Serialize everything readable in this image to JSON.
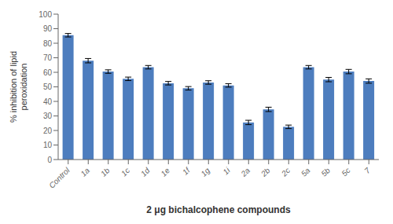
{
  "chart_data": {
    "type": "bar",
    "categories": [
      "Control",
      "1a",
      "1b",
      "1c",
      "1d",
      "1e",
      "1f",
      "1g",
      "1i",
      "2a",
      "2b",
      "2c",
      "5a",
      "5b",
      "5c",
      "7"
    ],
    "values": [
      85.5,
      68.0,
      60.5,
      55.5,
      63.5,
      52.5,
      49.0,
      53.0,
      51.0,
      25.5,
      34.5,
      22.5,
      63.5,
      55.0,
      60.5,
      54.0
    ],
    "errors": [
      1.2,
      1.5,
      1.2,
      1.2,
      1.2,
      1.2,
      1.2,
      1.2,
      1.2,
      1.5,
      1.5,
      1.2,
      1.2,
      1.5,
      1.5,
      1.5
    ],
    "color": "#4d7dbe",
    "xlabel": "2 μg bichalcophene compounds",
    "ylabel": "% inhibition of lipid\nperoxidation",
    "ylim": [
      0,
      100
    ],
    "yticks": [
      0,
      10,
      20,
      30,
      40,
      50,
      60,
      70,
      80,
      90,
      100
    ],
    "grid": false
  }
}
